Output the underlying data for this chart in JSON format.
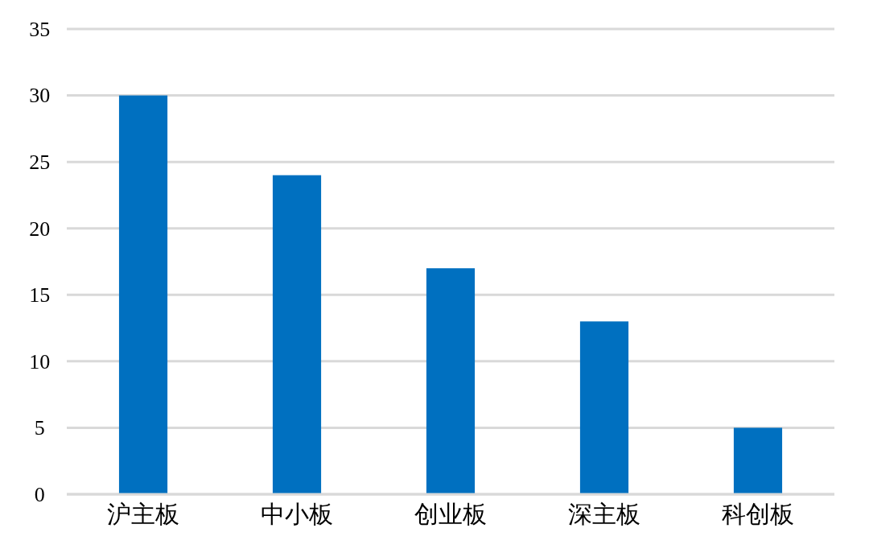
{
  "chart_data": {
    "type": "bar",
    "categories": [
      "沪主板",
      "中小板",
      "创业板",
      "深主板",
      "科创板"
    ],
    "values": [
      30,
      24,
      17,
      13,
      5
    ],
    "color": "#0070c0",
    "ylim": [
      0,
      35
    ],
    "yticks": [
      0,
      5,
      10,
      15,
      20,
      25,
      30,
      35
    ],
    "grid": "y"
  }
}
